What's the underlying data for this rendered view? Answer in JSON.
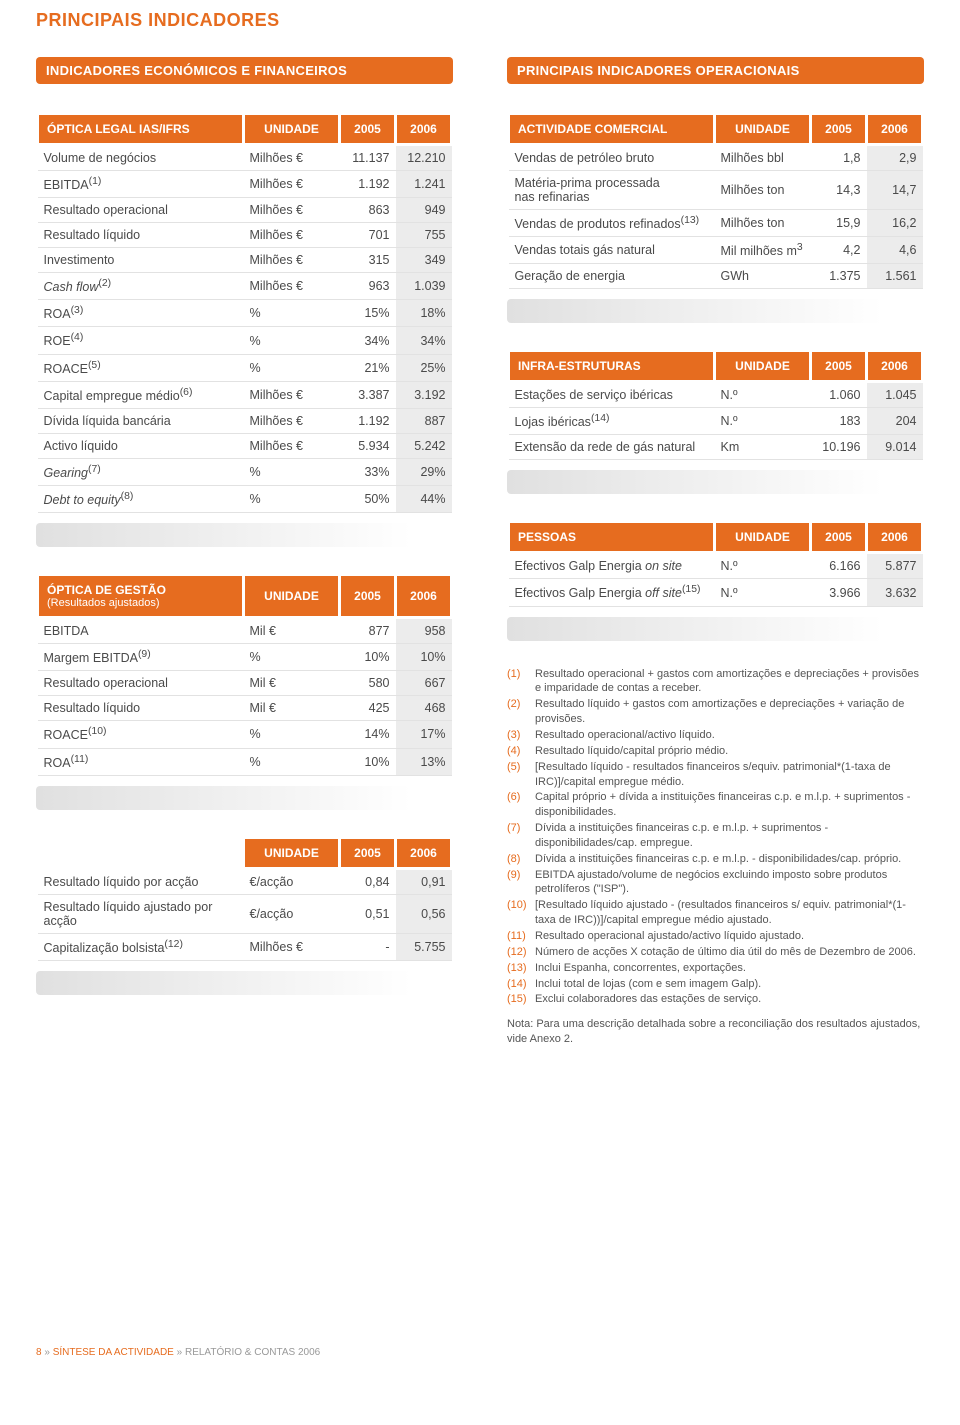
{
  "colors": {
    "accent": "#e66c1f",
    "val2006_bg": "#ececec",
    "border": "#e2e2e2"
  },
  "page_title": "PRINCIPAIS INDICADORES",
  "left_section_header": "INDICADORES ECONÓMICOS E FINANCEIROS",
  "right_section_header": "PRINCIPAIS INDICADORES OPERACIONAIS",
  "col_headers": {
    "unidade": "UNIDADE",
    "y2005": "2005",
    "y2006": "2006"
  },
  "table1": {
    "title": "ÓPTICA LEGAL IAS/IFRS",
    "rows": [
      {
        "label": "Volume de negócios",
        "unit": "Milhões €",
        "v05": "11.137",
        "v06": "12.210"
      },
      {
        "label_html": "EBITDA<sup>(1)</sup>",
        "unit": "Milhões €",
        "v05": "1.192",
        "v06": "1.241"
      },
      {
        "label": "Resultado operacional",
        "unit": "Milhões €",
        "v05": "863",
        "v06": "949"
      },
      {
        "label": "Resultado líquido",
        "unit": "Milhões €",
        "v05": "701",
        "v06": "755"
      },
      {
        "label": "Investimento",
        "unit": "Milhões €",
        "v05": "315",
        "v06": "349"
      },
      {
        "label_html": "<span class=\"italic\">Cash flow</span><sup>(2)</sup>",
        "unit": "Milhões €",
        "v05": "963",
        "v06": "1.039"
      },
      {
        "label_html": "ROA<sup>(3)</sup>",
        "unit": "%",
        "v05": "15%",
        "v06": "18%"
      },
      {
        "label_html": "ROE<sup>(4)</sup>",
        "unit": "%",
        "v05": "34%",
        "v06": "34%"
      },
      {
        "label_html": "ROACE<sup>(5)</sup>",
        "unit": "%",
        "v05": "21%",
        "v06": "25%"
      },
      {
        "label_html": "Capital empregue médio<sup>(6)</sup>",
        "unit": "Milhões €",
        "v05": "3.387",
        "v06": "3.192"
      },
      {
        "label": "Dívida líquida bancária",
        "unit": "Milhões €",
        "v05": "1.192",
        "v06": "887"
      },
      {
        "label": "Activo líquido",
        "unit": "Milhões €",
        "v05": "5.934",
        "v06": "5.242"
      },
      {
        "label_html": "<span class=\"italic\">Gearing</span><sup>(7)</sup>",
        "unit": "%",
        "v05": "33%",
        "v06": "29%"
      },
      {
        "label_html": "<span class=\"italic\">Debt to equity</span><sup>(8)</sup>",
        "unit": "%",
        "v05": "50%",
        "v06": "44%"
      }
    ]
  },
  "table2": {
    "title": "ÓPTICA DE GESTÃO",
    "subtitle": "(Resultados ajustados)",
    "rows": [
      {
        "label": "EBITDA",
        "unit": "Mil €",
        "v05": "877",
        "v06": "958"
      },
      {
        "label_html": "Margem EBITDA<sup>(9)</sup>",
        "unit": "%",
        "v05": "10%",
        "v06": "10%"
      },
      {
        "label": "Resultado operacional",
        "unit": "Mil €",
        "v05": "580",
        "v06": "667"
      },
      {
        "label": "Resultado líquido",
        "unit": "Mil €",
        "v05": "425",
        "v06": "468"
      },
      {
        "label_html": "ROACE<sup>(10)</sup>",
        "unit": "%",
        "v05": "14%",
        "v06": "17%"
      },
      {
        "label_html": "ROA<sup>(11)</sup>",
        "unit": "%",
        "v05": "10%",
        "v06": "13%"
      }
    ]
  },
  "table3": {
    "title": "",
    "rows": [
      {
        "label": "Resultado líquido por acção",
        "unit": "€/acção",
        "v05": "0,84",
        "v06": "0,91"
      },
      {
        "label": "Resultado líquido ajustado por acção",
        "unit": "€/acção",
        "v05": "0,51",
        "v06": "0,56"
      },
      {
        "label_html": "Capitalização bolsista<sup>(12)</sup>",
        "unit": "Milhões €",
        "v05": "-",
        "v06": "5.755"
      }
    ]
  },
  "table4": {
    "title": "ACTIVIDADE COMERCIAL",
    "rows": [
      {
        "label": "Vendas de petróleo bruto",
        "unit": "Milhões bbl",
        "v05": "1,8",
        "v06": "2,9"
      },
      {
        "label_html": "Matéria-prima processada<br>nas refinarias",
        "unit": "Milhões ton",
        "v05": "14,3",
        "v06": "14,7"
      },
      {
        "label_html": "Vendas de produtos refinados<sup>(13)</sup>",
        "unit": "Milhões ton",
        "v05": "15,9",
        "v06": "16,2"
      },
      {
        "label": "Vendas totais gás natural",
        "unit_html": "Mil milhões m<sup>3</sup>",
        "v05": "4,2",
        "v06": "4,6"
      },
      {
        "label": "Geração de energia",
        "unit": "GWh",
        "v05": "1.375",
        "v06": "1.561"
      }
    ]
  },
  "table5": {
    "title": "INFRA-ESTRUTURAS",
    "rows": [
      {
        "label": "Estações de serviço ibéricas",
        "unit": "N.º",
        "v05": "1.060",
        "v06": "1.045"
      },
      {
        "label_html": "Lojas ibéricas<sup>(14)</sup>",
        "unit": "N.º",
        "v05": "183",
        "v06": "204"
      },
      {
        "label": "Extensão da rede de gás natural",
        "unit": "Km",
        "v05": "10.196",
        "v06": "9.014"
      }
    ]
  },
  "table6": {
    "title": "PESSOAS",
    "rows": [
      {
        "label_html": "Efectivos Galp Energia <span class=\"italic\">on site</span>",
        "unit": "N.º",
        "v05": "6.166",
        "v06": "5.877"
      },
      {
        "label_html": "Efectivos Galp Energia <span class=\"italic\">off site</span><sup>(15)</sup>",
        "unit": "N.º",
        "v05": "3.966",
        "v06": "3.632"
      }
    ]
  },
  "notes": [
    {
      "n": "(1)",
      "t": "Resultado operacional + gastos com amortizações e depreciações + provisões e imparidade de contas a receber."
    },
    {
      "n": "(2)",
      "t": "Resultado líquido + gastos com amortizações e depreciações + variação de provisões."
    },
    {
      "n": "(3)",
      "t": "Resultado operacional/activo líquido."
    },
    {
      "n": "(4)",
      "t": "Resultado líquido/capital próprio médio."
    },
    {
      "n": "(5)",
      "t": "[Resultado líquido - resultados financeiros s/equiv. patrimonial*(1-taxa de IRC)]/capital empregue médio."
    },
    {
      "n": "(6)",
      "t": "Capital próprio + dívida a instituições financeiras c.p. e m.l.p. + suprimentos - disponibilidades."
    },
    {
      "n": "(7)",
      "t": "Dívida a instituições financeiras c.p. e m.l.p. + suprimentos - disponibilidades/cap. empregue."
    },
    {
      "n": "(8)",
      "t": "Dívida a instituições financeiras c.p. e m.l.p. - disponibilidades/cap. próprio."
    },
    {
      "n": "(9)",
      "t": "EBITDA ajustado/volume de negócios excluindo imposto sobre produtos petrolíferos (\"ISP\")."
    },
    {
      "n": "(10)",
      "t": "[Resultado líquido ajustado - (resultados financeiros s/ equiv. patrimonial*(1-taxa de IRC))]/capital empregue médio ajustado."
    },
    {
      "n": "(11)",
      "t": "Resultado operacional ajustado/activo líquido ajustado."
    },
    {
      "n": "(12)",
      "t": "Número de acções X cotação de último dia útil do mês de Dezembro de 2006."
    },
    {
      "n": "(13)",
      "t": "Inclui Espanha, concorrentes, exportações."
    },
    {
      "n": "(14)",
      "t": "Inclui total de lojas (com e sem imagem Galp)."
    },
    {
      "n": "(15)",
      "t": "Exclui colaboradores das estações de serviço."
    }
  ],
  "final_note": "Nota: Para uma descrição detalhada sobre a reconciliação dos resultados ajustados, vide Anexo 2.",
  "footer": {
    "page": "8",
    "sep1": " » ",
    "a": "SÍNTESE DA ACTIVIDADE",
    "sep2": " » ",
    "b": "RELATÓRIO & CONTAS 2006"
  }
}
